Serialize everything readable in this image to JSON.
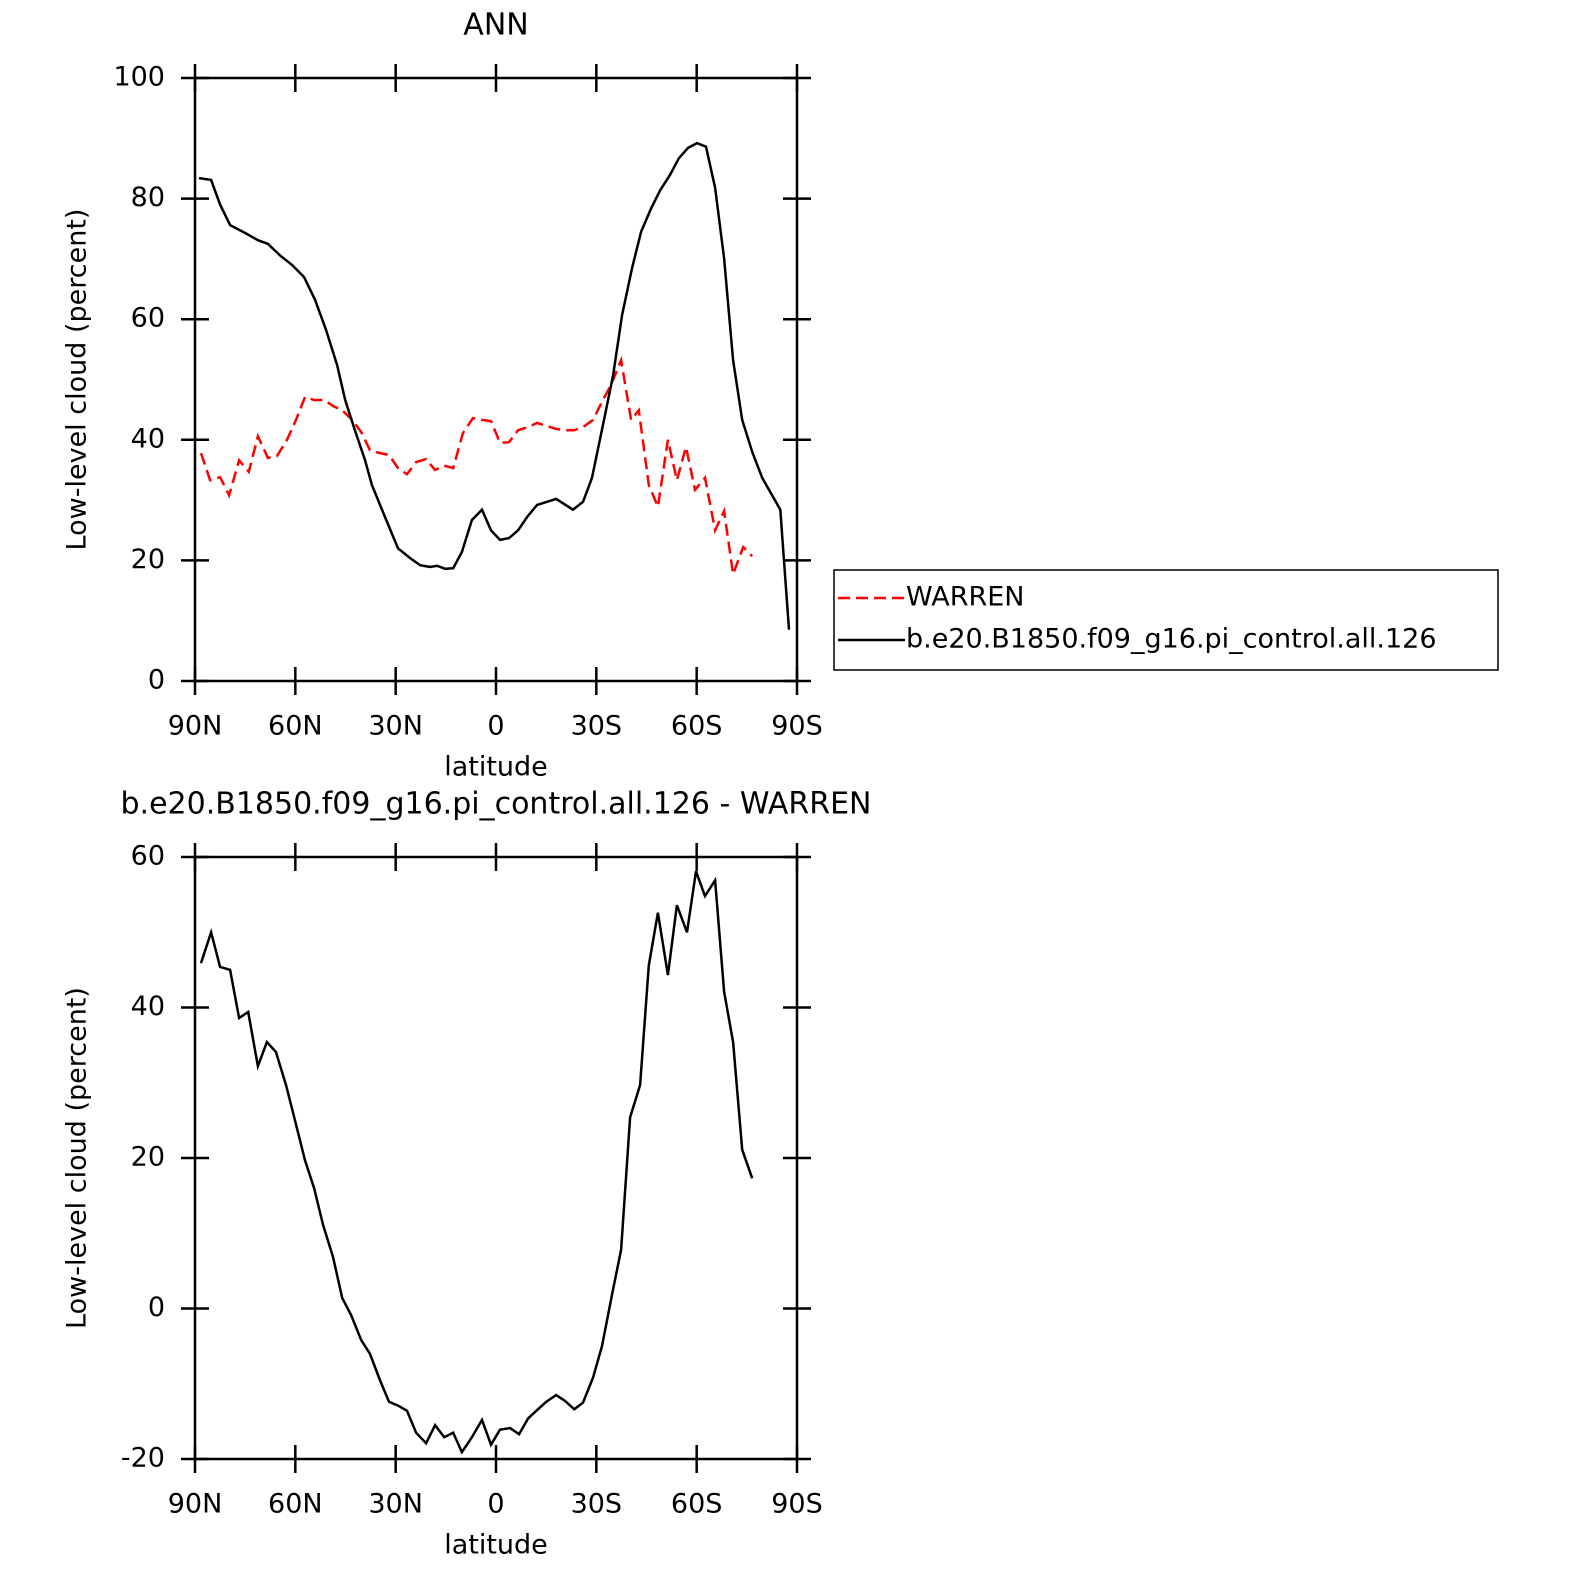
{
  "chart_data": [
    {
      "type": "line",
      "title": "ANN",
      "xlabel": "latitude",
      "ylabel": "Low-level cloud (percent)",
      "xlim": [
        90,
        -90
      ],
      "xticks": [
        {
          "value": 90,
          "label": "90N"
        },
        {
          "value": 60,
          "label": "60N"
        },
        {
          "value": 30,
          "label": "30N"
        },
        0,
        {
          "value": -30,
          "label": "30S"
        },
        {
          "value": -60,
          "label": "60S"
        },
        {
          "value": -90,
          "label": "90S"
        }
      ],
      "ylim": [
        0,
        100
      ],
      "yticks": [
        0,
        20,
        40,
        60,
        80,
        100
      ],
      "legend": "outside right",
      "series": [
        {
          "name": "WARREN",
          "color": "#ff0000",
          "dash": true,
          "x": [
            88.2,
            85.5,
            82.5,
            79.8,
            76.8,
            73.9,
            71.2,
            68.2,
            65.5,
            62.5,
            59.8,
            57.1,
            54.4,
            51.4,
            48.7,
            46,
            43,
            40.3,
            37.7,
            34.7,
            32,
            29.3,
            26.6,
            23.9,
            20.9,
            18.2,
            15.5,
            12.8,
            9.9,
            6.9,
            4.2,
            1.5,
            -1.2,
            -3.9,
            -6.6,
            -9.6,
            -12.3,
            -15,
            -18,
            -20.7,
            -23.4,
            -26,
            -29,
            -31.7,
            -34.4,
            -37.4,
            -40.4,
            -42.7,
            -45.7,
            -48.4,
            -51.4,
            -54.1,
            -56.8,
            -59.5,
            -62.5,
            -65.5,
            -68.2,
            -70.9,
            -73.9,
            -76.6
          ],
          "values": [
            37.8,
            33.3,
            33.8,
            30.8,
            36.6,
            34.7,
            40.6,
            37,
            37.3,
            40,
            43.3,
            47.1,
            46.6,
            46.6,
            45.6,
            44.9,
            43.3,
            41.3,
            38.3,
            37.8,
            37.5,
            35.3,
            34.3,
            36.3,
            36.8,
            35,
            35.7,
            35.3,
            41.1,
            43.6,
            43.3,
            43.1,
            39.5,
            39.6,
            41.6,
            42.1,
            42.8,
            42.3,
            41.8,
            41.6,
            41.6,
            42.1,
            43.3,
            46.3,
            49.1,
            53.2,
            43.3,
            44.9,
            32.5,
            28.9,
            40,
            33.3,
            38.8,
            31.7,
            33.7,
            25,
            28.2,
            17.7,
            22.2,
            20.7
          ]
        },
        {
          "name": "b.e20.B1850.f09_g16.pi_control.all.126",
          "color": "#000000",
          "dash": false,
          "x": [
            88.8,
            85.2,
            82.5,
            79.5,
            75,
            71.2,
            68.2,
            64.6,
            61,
            57.4,
            54.1,
            50.8,
            47.5,
            45.1,
            42.2,
            39.2,
            37.1,
            33.2,
            29.3,
            25.7,
            22.7,
            19.7,
            17.6,
            15.2,
            12.8,
            10.2,
            7.2,
            4.2,
            1.5,
            -1.2,
            -3.9,
            -6.6,
            -9.3,
            -12.3,
            -18,
            -23,
            -26,
            -28.7,
            -32.3,
            -35,
            -37.7,
            -40.7,
            -43.4,
            -46.4,
            -49.1,
            -52,
            -54.7,
            -57.4,
            -60.1,
            -62.8,
            -65.5,
            -68.2,
            -70.9,
            -73.6,
            -76.6,
            -79.6,
            -85,
            -87.6
          ],
          "values": [
            83.4,
            83.1,
            79,
            75.6,
            74.3,
            73.1,
            72.5,
            70.6,
            69,
            67,
            63.2,
            58.2,
            52.4,
            46.6,
            41.6,
            36.7,
            32.5,
            27.2,
            22,
            20.4,
            19.2,
            18.9,
            19.1,
            18.6,
            18.7,
            21.4,
            26.7,
            28.4,
            25,
            23.4,
            23.7,
            25,
            27.2,
            29.2,
            30.2,
            28.4,
            29.7,
            33.7,
            43.3,
            50.7,
            60.7,
            68.5,
            74.5,
            78.4,
            81.4,
            83.9,
            86.7,
            88.4,
            89.2,
            88.6,
            81.8,
            70.1,
            53.2,
            43.3,
            38,
            33.7,
            28.4,
            8.5
          ]
        }
      ]
    },
    {
      "type": "line",
      "title": "b.e20.B1850.f09_g16.pi_control.all.126 - WARREN",
      "xlabel": "latitude",
      "ylabel": "Low-level cloud (percent)",
      "xlim": [
        90,
        -90
      ],
      "xticks": [
        {
          "value": 90,
          "label": "90N"
        },
        {
          "value": 60,
          "label": "60N"
        },
        {
          "value": 30,
          "label": "30N"
        },
        0,
        {
          "value": -30,
          "label": "30S"
        },
        {
          "value": -60,
          "label": "60S"
        },
        {
          "value": -90,
          "label": "90S"
        }
      ],
      "ylim": [
        -20,
        60
      ],
      "yticks": [
        -20,
        0,
        20,
        40,
        60
      ],
      "series": [
        {
          "color": "#000000",
          "dash": false,
          "x": [
            88.2,
            85.2,
            82.5,
            79.5,
            76.8,
            74.1,
            71.2,
            68.5,
            65.8,
            62.8,
            60.1,
            57.1,
            54.4,
            51.7,
            48.7,
            46,
            43.3,
            40.3,
            37.7,
            34.7,
            32,
            29.3,
            26.6,
            23.9,
            20.9,
            18.2,
            15.5,
            12.8,
            10.2,
            7.2,
            4.2,
            1.5,
            -1.2,
            -4.2,
            -6.9,
            -9.6,
            -12.3,
            -15,
            -18,
            -20.7,
            -23.4,
            -26,
            -29,
            -31.7,
            -34.7,
            -37.4,
            -40.1,
            -43.1,
            -45.7,
            -48.4,
            -51.4,
            -54.1,
            -57.1,
            -59.8,
            -62.5,
            -65.5,
            -68.2,
            -70.9,
            -73.6,
            -76.6
          ],
          "values": [
            45.9,
            50,
            45.4,
            45,
            38.6,
            39.4,
            32.2,
            35.4,
            34.1,
            29.7,
            25,
            19.7,
            16,
            11.1,
            6.8,
            1.4,
            -0.9,
            -4.2,
            -6,
            -9.5,
            -12.4,
            -12.9,
            -13.6,
            -16.5,
            -17.9,
            -15.5,
            -17.1,
            -16.5,
            -19.1,
            -17.1,
            -14.8,
            -18.1,
            -16.1,
            -15.9,
            -16.7,
            -14.6,
            -13.5,
            -12.4,
            -11.5,
            -12.3,
            -13.4,
            -12.5,
            -9.2,
            -5,
            1.9,
            7.8,
            25.4,
            29.7,
            45.6,
            52.6,
            44.3,
            53.6,
            50,
            58.1,
            54.8,
            56.9,
            42.1,
            35.4,
            21.1,
            17.3
          ]
        }
      ]
    }
  ]
}
